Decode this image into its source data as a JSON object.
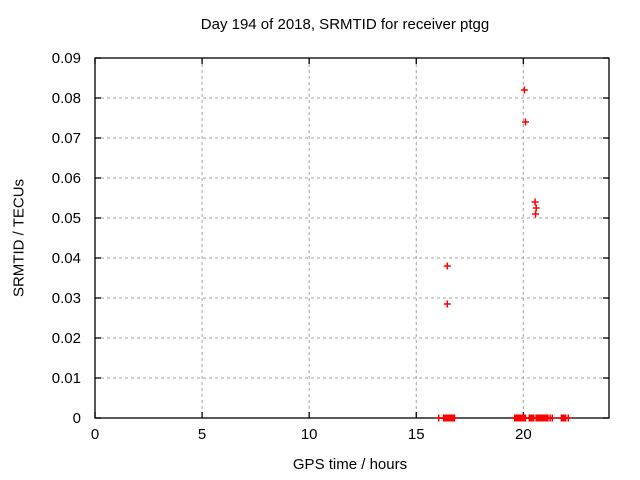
{
  "window": {
    "background": "#ffffff"
  },
  "chart_data": {
    "type": "scatter",
    "title": "Day 194 of 2018, SRMTID for receiver ptgg",
    "xlabel": "GPS time / hours",
    "ylabel": "SRMTID / TECUs",
    "xlim": [
      0,
      24
    ],
    "ylim": [
      0,
      0.09
    ],
    "x_ticks": [
      0,
      5,
      10,
      15,
      20
    ],
    "x_tick_labels": [
      "0",
      "5",
      "10",
      "15",
      "20"
    ],
    "y_ticks": [
      0,
      0.01,
      0.02,
      0.03,
      0.04,
      0.05,
      0.06,
      0.07,
      0.08,
      0.09
    ],
    "y_tick_labels": [
      "0",
      "0.01",
      "0.02",
      "0.03",
      "0.04",
      "0.05",
      "0.06",
      "0.07",
      "0.08",
      "0.09"
    ],
    "grid": true,
    "legend_position": "none",
    "marker": {
      "shape": "plus",
      "color": "#ff0000",
      "size": 7
    },
    "colors": {
      "frame": "#000000",
      "grid": "#a0a0a0",
      "background": "#ffffff",
      "text": "#000000"
    },
    "series": [
      {
        "name": "SRMTID",
        "points": [
          [
            16.45,
            0.038
          ],
          [
            16.45,
            0.0285
          ],
          [
            20.05,
            0.082
          ],
          [
            20.1,
            0.074
          ],
          [
            20.55,
            0.054
          ],
          [
            20.6,
            0.0525
          ],
          [
            20.57,
            0.051
          ],
          [
            16.05,
            0
          ],
          [
            16.28,
            0
          ],
          [
            16.33,
            0
          ],
          [
            16.38,
            0
          ],
          [
            16.43,
            0
          ],
          [
            16.48,
            0
          ],
          [
            16.53,
            0
          ],
          [
            16.58,
            0
          ],
          [
            16.63,
            0
          ],
          [
            16.68,
            0
          ],
          [
            16.73,
            0
          ],
          [
            16.78,
            0
          ],
          [
            19.6,
            0
          ],
          [
            19.65,
            0
          ],
          [
            19.7,
            0
          ],
          [
            19.75,
            0
          ],
          [
            19.8,
            0
          ],
          [
            19.85,
            0
          ],
          [
            19.9,
            0
          ],
          [
            19.95,
            0
          ],
          [
            20.0,
            0
          ],
          [
            20.05,
            0
          ],
          [
            20.1,
            0
          ],
          [
            20.28,
            0
          ],
          [
            20.33,
            0
          ],
          [
            20.38,
            0
          ],
          [
            20.43,
            0
          ],
          [
            20.48,
            0
          ],
          [
            20.6,
            0
          ],
          [
            20.65,
            0
          ],
          [
            20.7,
            0
          ],
          [
            20.75,
            0
          ],
          [
            20.8,
            0
          ],
          [
            20.85,
            0
          ],
          [
            20.9,
            0
          ],
          [
            20.95,
            0
          ],
          [
            21.0,
            0
          ],
          [
            21.05,
            0
          ],
          [
            21.1,
            0
          ],
          [
            21.15,
            0
          ],
          [
            21.25,
            0
          ],
          [
            21.35,
            0
          ],
          [
            21.78,
            0
          ],
          [
            21.83,
            0
          ],
          [
            21.88,
            0
          ],
          [
            21.93,
            0
          ],
          [
            21.98,
            0
          ],
          [
            22.1,
            0
          ]
        ]
      }
    ]
  }
}
